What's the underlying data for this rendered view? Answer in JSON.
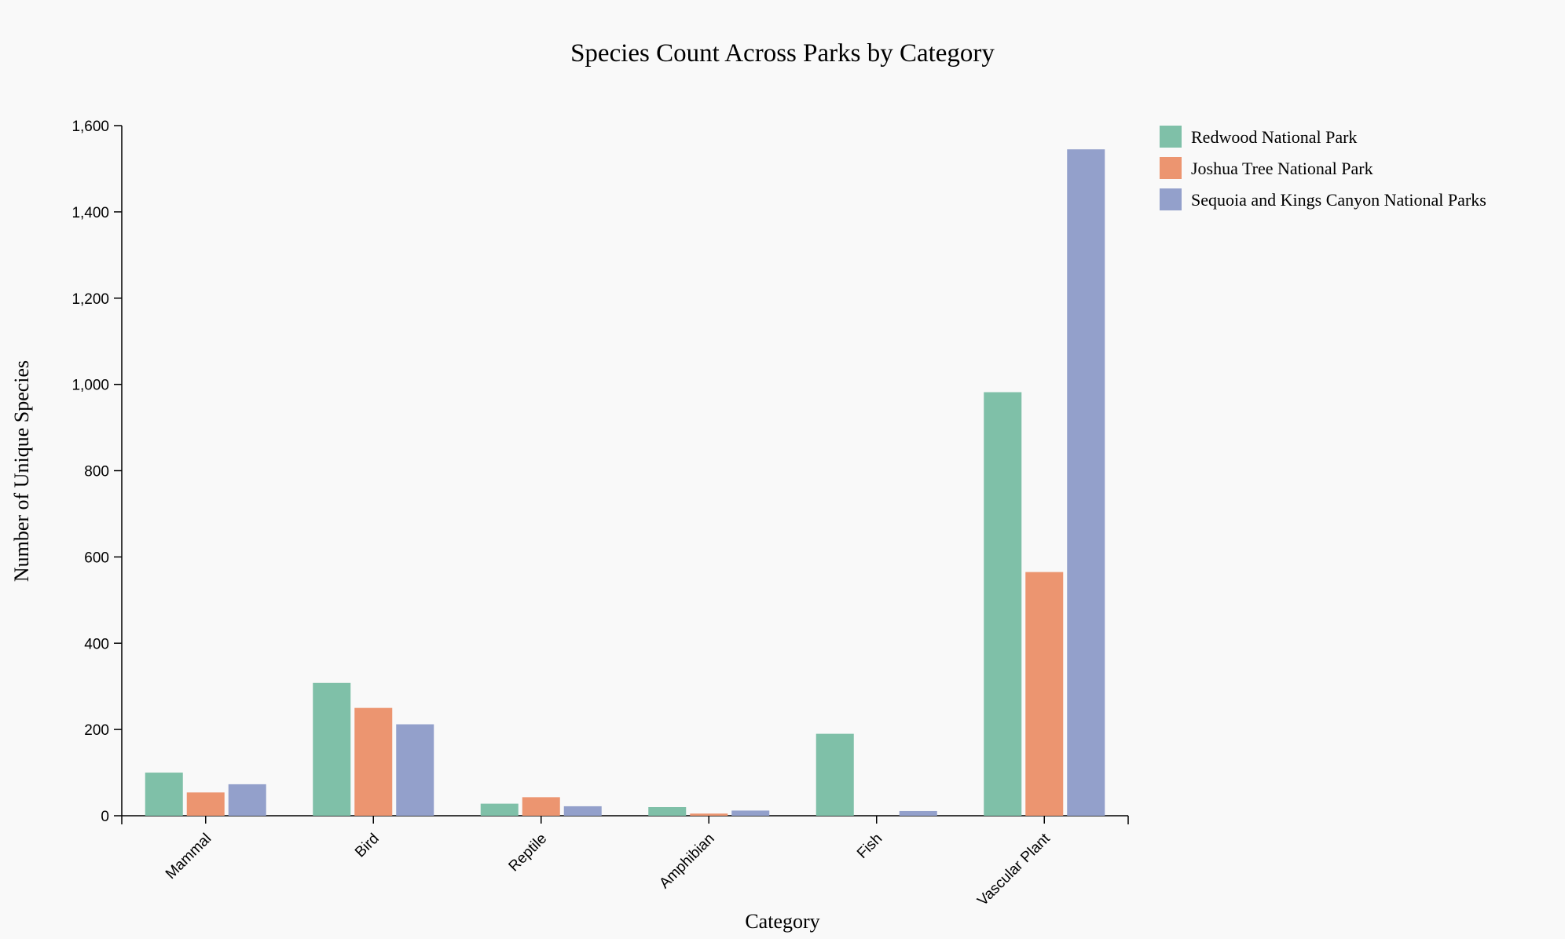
{
  "chart_data": {
    "type": "bar",
    "title": "Species Count Across Parks by Category",
    "xlabel": "Category",
    "ylabel": "Number of Unique Species",
    "categories": [
      "Mammal",
      "Bird",
      "Reptile",
      "Amphibian",
      "Fish",
      "Vascular Plant"
    ],
    "series": [
      {
        "name": "Redwood National Park",
        "color": "#7fc0a8",
        "values": [
          100,
          308,
          28,
          20,
          190,
          982
        ]
      },
      {
        "name": "Joshua Tree National Park",
        "color": "#ec9570",
        "values": [
          54,
          250,
          43,
          5,
          0,
          565
        ]
      },
      {
        "name": "Sequoia and Kings Canyon National Parks",
        "color": "#93a0cb",
        "values": [
          73,
          212,
          22,
          12,
          11,
          1545
        ]
      }
    ],
    "ylim": [
      0,
      1600
    ],
    "yticks": [
      0,
      200,
      400,
      600,
      800,
      1000,
      1200,
      1400,
      1600
    ],
    "ytick_labels": [
      "0",
      "200",
      "400",
      "600",
      "800",
      "1,000",
      "1,200",
      "1,400",
      "1,600"
    ],
    "grid": false,
    "legend_position": "top-right"
  }
}
